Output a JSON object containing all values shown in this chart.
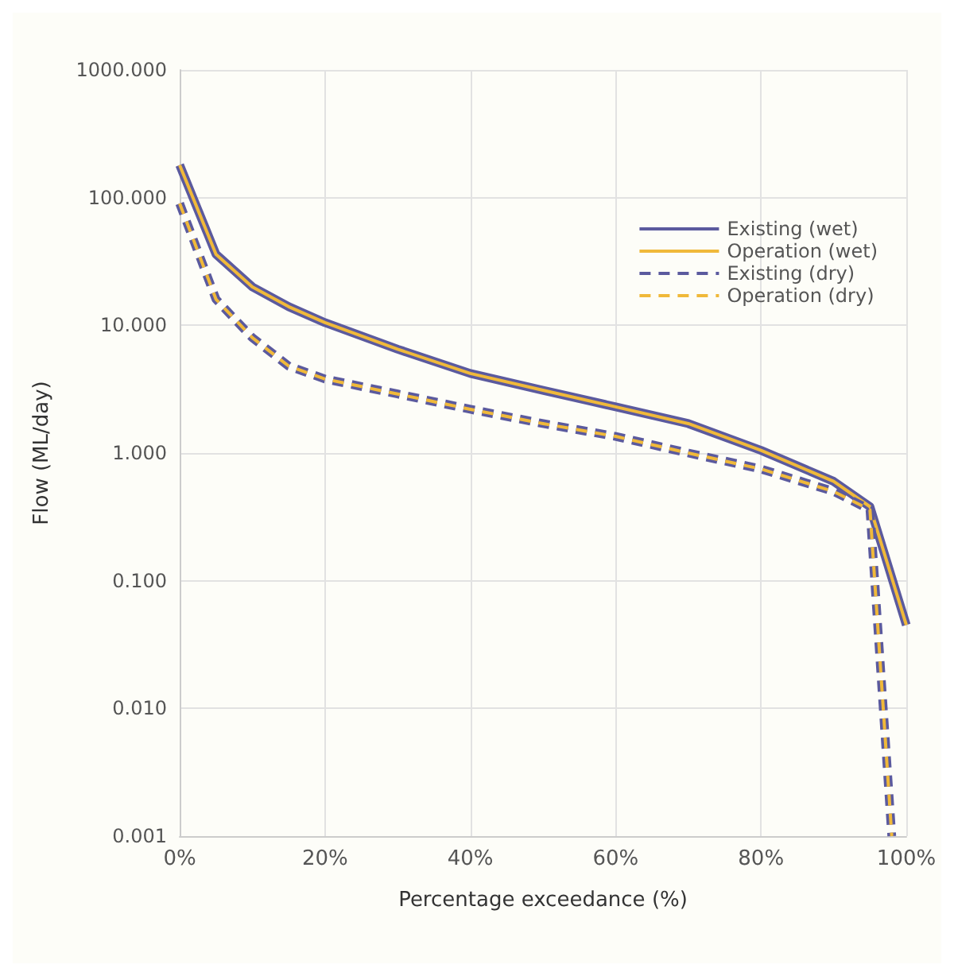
{
  "chart_data": {
    "type": "line",
    "xlabel": "Percentage exceedance (%)",
    "ylabel": "Flow (ML/day)",
    "log": "y",
    "grid": true,
    "legend": "top right",
    "marker": "none",
    "xlim": [
      0,
      100
    ],
    "xticks": [
      {
        "value": 0,
        "label": "0%"
      },
      {
        "value": 20,
        "label": "20%"
      },
      {
        "value": 40,
        "label": "40%"
      },
      {
        "value": 60,
        "label": "60%"
      },
      {
        "value": 80,
        "label": "80%"
      },
      {
        "value": 100,
        "label": "100%"
      }
    ],
    "ylim": [
      0.001,
      1000
    ],
    "yticks": [
      {
        "value": 0.001,
        "label": "0.001"
      },
      {
        "value": 0.01,
        "label": "0.010"
      },
      {
        "value": 0.1,
        "label": "0.100"
      },
      {
        "value": 1,
        "label": "1.000"
      },
      {
        "value": 10,
        "label": "10.000"
      },
      {
        "value": 100,
        "label": "100.000"
      },
      {
        "value": 1000,
        "label": "1000.000"
      }
    ],
    "series": [
      {
        "name": "Existing (wet)",
        "color": "#5b5a9e",
        "line_style": "solid",
        "x": [
          0,
          5,
          10,
          15,
          20,
          30,
          40,
          50,
          60,
          70,
          80,
          90,
          95,
          100
        ],
        "values": [
          180,
          36,
          20,
          14,
          10.5,
          6.5,
          4.2,
          3.1,
          2.3,
          1.7,
          1.05,
          0.6,
          0.38,
          0.045
        ]
      },
      {
        "name": "Operation (wet)",
        "color": "#f0b93a",
        "line_style": "solid",
        "x": [
          0,
          5,
          10,
          15,
          20,
          30,
          40,
          50,
          60,
          70,
          80,
          90,
          95,
          100
        ],
        "values": [
          180,
          36,
          20,
          14,
          10.5,
          6.5,
          4.2,
          3.1,
          2.3,
          1.7,
          1.05,
          0.6,
          0.38,
          0.045
        ]
      },
      {
        "name": "Existing (dry)",
        "color": "#5b5a9e",
        "line_style": "dashed",
        "x": [
          0,
          5,
          10,
          15,
          20,
          30,
          40,
          50,
          60,
          70,
          80,
          90,
          95,
          98
        ],
        "values": [
          90,
          16,
          8,
          4.8,
          3.8,
          2.9,
          2.2,
          1.7,
          1.35,
          1.0,
          0.75,
          0.5,
          0.36,
          0.001
        ]
      },
      {
        "name": "Operation (dry)",
        "color": "#f0b93a",
        "line_style": "dashed",
        "x": [
          0,
          5,
          10,
          15,
          20,
          30,
          40,
          50,
          60,
          70,
          80,
          90,
          95,
          98
        ],
        "values": [
          90,
          16,
          8,
          4.8,
          3.8,
          2.9,
          2.2,
          1.7,
          1.35,
          1.0,
          0.75,
          0.5,
          0.36,
          0.001
        ]
      }
    ]
  }
}
